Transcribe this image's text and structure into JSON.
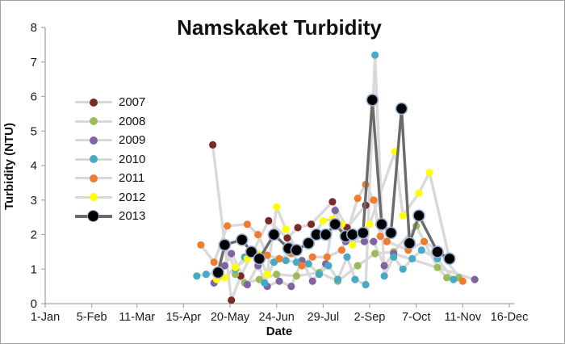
{
  "chart": {
    "title": "Namskaket Turbidity",
    "xlabel": "Date",
    "ylabel": "Turbidity (NTU)"
  },
  "chart_data": {
    "type": "line",
    "title": "Namskaket Turbidity",
    "xlabel": "Date",
    "ylabel": "Turbidity (NTU)",
    "x_unit": "day-of-year",
    "ylim": [
      0,
      8
    ],
    "ytick_interval": 1,
    "ytick_labels": [
      "0",
      "1",
      "2",
      "3",
      "4",
      "5",
      "6",
      "7",
      "8"
    ],
    "xtick_labels": [
      "1-Jan",
      "5-Feb",
      "11-Mar",
      "15-Apr",
      "20-May",
      "24-Jun",
      "29-Jul",
      "2-Sep",
      "7-Oct",
      "11-Nov",
      "16-Dec"
    ],
    "xtick_days": [
      1,
      36,
      70,
      105,
      140,
      175,
      210,
      245,
      280,
      315,
      350
    ],
    "grid": false,
    "legend_position": "upper-left-inside",
    "line_color_default": "#d9d9d9",
    "series": [
      {
        "name": "2007",
        "marker_color": "#7a2a27",
        "line_color": "#d9d9d9",
        "points": [
          [
            127,
            4.6
          ],
          [
            141,
            0.1
          ],
          [
            148,
            0.8
          ],
          [
            169,
            2.4
          ],
          [
            183,
            1.9
          ],
          [
            191,
            2.2
          ],
          [
            201,
            2.3
          ],
          [
            217,
            2.95
          ],
          [
            228,
            2.2
          ],
          [
            242,
            2.85
          ]
        ]
      },
      {
        "name": "2008",
        "marker_color": "#9bbb59",
        "line_color": "#d9d9d9",
        "points": [
          [
            144,
            0.85
          ],
          [
            151,
            0.6
          ],
          [
            162,
            0.7
          ],
          [
            175,
            0.85
          ],
          [
            190,
            0.8
          ],
          [
            207,
            0.9
          ],
          [
            221,
            0.65
          ],
          [
            236,
            1.1
          ],
          [
            249,
            1.45
          ],
          [
            263,
            1.5
          ],
          [
            280,
            2.25
          ],
          [
            296,
            1.05
          ],
          [
            303,
            0.75
          ],
          [
            312,
            0.75
          ]
        ]
      },
      {
        "name": "2009",
        "marker_color": "#8064a2",
        "line_color": "#d9d9d9",
        "points": [
          [
            128,
            0.6
          ],
          [
            136,
            1.1
          ],
          [
            141,
            1.45
          ],
          [
            153,
            0.55
          ],
          [
            161,
            1.1
          ],
          [
            168,
            0.5
          ],
          [
            177,
            0.65
          ],
          [
            186,
            0.5
          ],
          [
            194,
            1.25
          ],
          [
            202,
            0.65
          ],
          [
            212,
            1.15
          ],
          [
            219,
            2.7
          ],
          [
            227,
            1.8
          ],
          [
            241,
            1.8
          ],
          [
            248,
            1.8
          ],
          [
            256,
            1.1
          ],
          [
            263,
            1.45
          ],
          [
            324,
            0.7
          ]
        ]
      },
      {
        "name": "2010",
        "marker_color": "#46aac5",
        "line_color": "#d9d9d9",
        "points": [
          [
            115,
            0.8
          ],
          [
            122,
            0.85
          ],
          [
            130,
            0.9
          ],
          [
            136,
            1.65
          ],
          [
            144,
            1.0
          ],
          [
            151,
            1.35
          ],
          [
            159,
            1.45
          ],
          [
            166,
            0.6
          ],
          [
            173,
            1.2
          ],
          [
            182,
            1.25
          ],
          [
            190,
            1.2
          ],
          [
            199,
            1.15
          ],
          [
            207,
            0.85
          ],
          [
            214,
            1.1
          ],
          [
            221,
            0.7
          ],
          [
            228,
            1.35
          ],
          [
            234,
            0.7
          ],
          [
            242,
            0.55
          ],
          [
            249,
            7.2
          ],
          [
            256,
            0.8
          ],
          [
            263,
            1.35
          ],
          [
            270,
            1.0
          ],
          [
            277,
            1.3
          ],
          [
            284,
            1.55
          ],
          [
            296,
            1.3
          ],
          [
            308,
            0.7
          ]
        ]
      },
      {
        "name": "2011",
        "marker_color": "#ee7d2f",
        "line_color": "#d9d9d9",
        "points": [
          [
            118,
            1.7
          ],
          [
            128,
            1.2
          ],
          [
            138,
            2.25
          ],
          [
            153,
            2.3
          ],
          [
            161,
            2.0
          ],
          [
            168,
            1.4
          ],
          [
            177,
            1.3
          ],
          [
            186,
            1.45
          ],
          [
            194,
            1.1
          ],
          [
            202,
            1.35
          ],
          [
            213,
            1.35
          ],
          [
            224,
            1.55
          ],
          [
            236,
            3.05
          ],
          [
            242,
            3.45
          ],
          [
            248,
            3.0
          ],
          [
            253,
            1.95
          ],
          [
            258,
            1.8
          ],
          [
            274,
            1.55
          ],
          [
            286,
            1.8
          ],
          [
            296,
            1.55
          ],
          [
            315,
            0.65
          ]
        ]
      },
      {
        "name": "2012",
        "marker_color": "#ffff00",
        "line_color": "#d9d9d9",
        "points": [
          [
            130,
            0.7
          ],
          [
            136,
            0.75
          ],
          [
            144,
            1.05
          ],
          [
            153,
            1.3
          ],
          [
            161,
            1.45
          ],
          [
            168,
            0.85
          ],
          [
            175,
            2.8
          ],
          [
            182,
            2.15
          ],
          [
            190,
            1.55
          ],
          [
            199,
            1.75
          ],
          [
            210,
            2.4
          ],
          [
            217,
            2.45
          ],
          [
            224,
            2.3
          ],
          [
            232,
            1.7
          ],
          [
            245,
            2.3
          ],
          [
            264,
            4.4
          ],
          [
            270,
            2.55
          ],
          [
            282,
            3.2
          ],
          [
            290,
            3.8
          ],
          [
            305,
            1.3
          ]
        ]
      },
      {
        "name": "2013",
        "marker_color": "#000000",
        "line_color": "#6b6b6b",
        "marker_outline": "#98afd4",
        "marker_size": "large",
        "points": [
          [
            131,
            0.9
          ],
          [
            136,
            1.7
          ],
          [
            149,
            1.85
          ],
          [
            156,
            1.5
          ],
          [
            162,
            1.3
          ],
          [
            173,
            2.0
          ],
          [
            184,
            1.6
          ],
          [
            190,
            1.55
          ],
          [
            199,
            1.75
          ],
          [
            205,
            2.0
          ],
          [
            212,
            2.0
          ],
          [
            219,
            2.3
          ],
          [
            227,
            1.95
          ],
          [
            232,
            2.0
          ],
          [
            240,
            2.05
          ],
          [
            247,
            5.9
          ],
          [
            254,
            2.3
          ],
          [
            261,
            2.05
          ],
          [
            269,
            5.65
          ],
          [
            275,
            1.75
          ],
          [
            282,
            2.55
          ],
          [
            296,
            1.5
          ],
          [
            305,
            1.3
          ]
        ]
      }
    ]
  }
}
